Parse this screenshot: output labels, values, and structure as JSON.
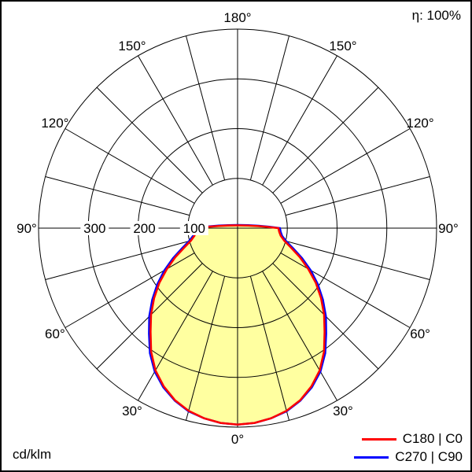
{
  "chart_data": {
    "type": "polar-line",
    "units_label": "cd/klm",
    "efficiency_label": "η: 100%",
    "fill_color": "#ffffa0",
    "grid_color": "#000000",
    "background_color": "#ffffff",
    "radial_axis": {
      "tick_values": [
        100,
        200,
        300
      ],
      "tick_labels": [
        "100",
        "200",
        "300"
      ],
      "max": 400
    },
    "angular_axis": {
      "spoke_step_deg": 15,
      "ticks": [
        {
          "deg": 0,
          "label": "0°"
        },
        {
          "deg": 30,
          "label": "30°"
        },
        {
          "deg": 60,
          "label": "60°"
        },
        {
          "deg": 90,
          "label": "90°"
        },
        {
          "deg": 120,
          "label": "120°"
        },
        {
          "deg": 150,
          "label": "150°"
        },
        {
          "deg": 180,
          "label": "180°"
        }
      ]
    },
    "series": [
      {
        "name": "C180 | C0",
        "color": "#ff0000",
        "gamma_deg": [
          0,
          5,
          10,
          15,
          20,
          25,
          30,
          35,
          40,
          45,
          50,
          55,
          60,
          65,
          70,
          75,
          80,
          85,
          90
        ],
        "values_cd_per_klm": [
          395,
          393,
          388,
          380,
          368,
          351,
          330,
          303,
          272,
          246,
          219,
          192,
          164,
          138,
          114,
          97,
          88,
          84,
          82
        ]
      },
      {
        "name": "C270 | C90",
        "color": "#0000ff",
        "gamma_deg": [
          0,
          5,
          10,
          15,
          20,
          25,
          30,
          35,
          40,
          45,
          50,
          55,
          60,
          65,
          70,
          75,
          80,
          85,
          90
        ],
        "values_cd_per_klm": [
          395,
          393,
          388,
          381,
          369,
          353,
          333,
          307,
          277,
          251,
          224,
          197,
          170,
          143,
          119,
          101,
          91,
          87,
          85
        ]
      }
    ]
  }
}
